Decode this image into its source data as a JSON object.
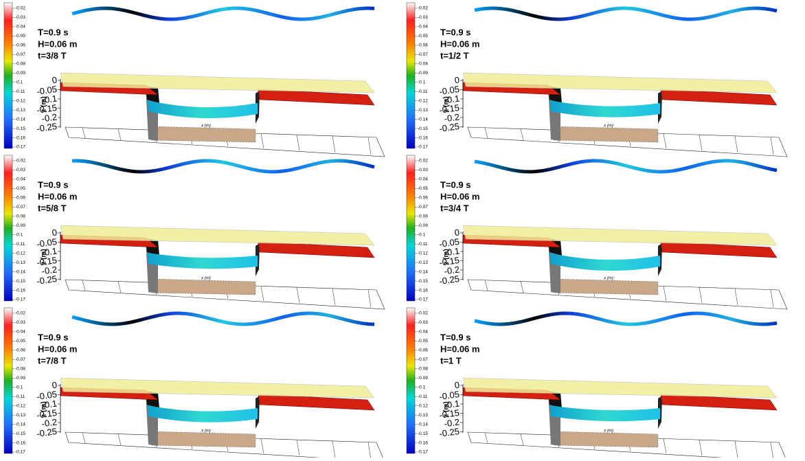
{
  "colorbar": {
    "ticks": [
      "-0.02",
      "-0.03",
      "-0.04",
      "-0.05",
      "-0.06",
      "-0.07",
      "-0.08",
      "-0.09",
      "-0.1",
      "-0.11",
      "-0.12",
      "-0.13",
      "-0.14",
      "-0.15",
      "-0.16",
      "-0.17"
    ]
  },
  "z_axis": {
    "label": "z (m)",
    "ticks": [
      "0",
      "-0.05",
      "-0.1",
      "-0.15",
      "-0.2",
      "-0.25"
    ]
  },
  "x_axis": {
    "label": "x (m)"
  },
  "panels": [
    {
      "period": "T=0.9 s",
      "height": "H=0.06 m",
      "time": "t=3/8 T"
    },
    {
      "period": "T=0.9 s",
      "height": "H=0.06 m",
      "time": "t=1/2 T"
    },
    {
      "period": "T=0.9 s",
      "height": "H=0.06 m",
      "time": "t=5/8 T"
    },
    {
      "period": "T=0.9 s",
      "height": "H=0.06 m",
      "time": "t=3/4 T"
    },
    {
      "period": "T=0.9 s",
      "height": "H=0.06 m",
      "time": "t=7/8 T"
    },
    {
      "period": "T=0.9 s",
      "height": "H=0.06 m",
      "time": "t=1 T"
    }
  ]
}
